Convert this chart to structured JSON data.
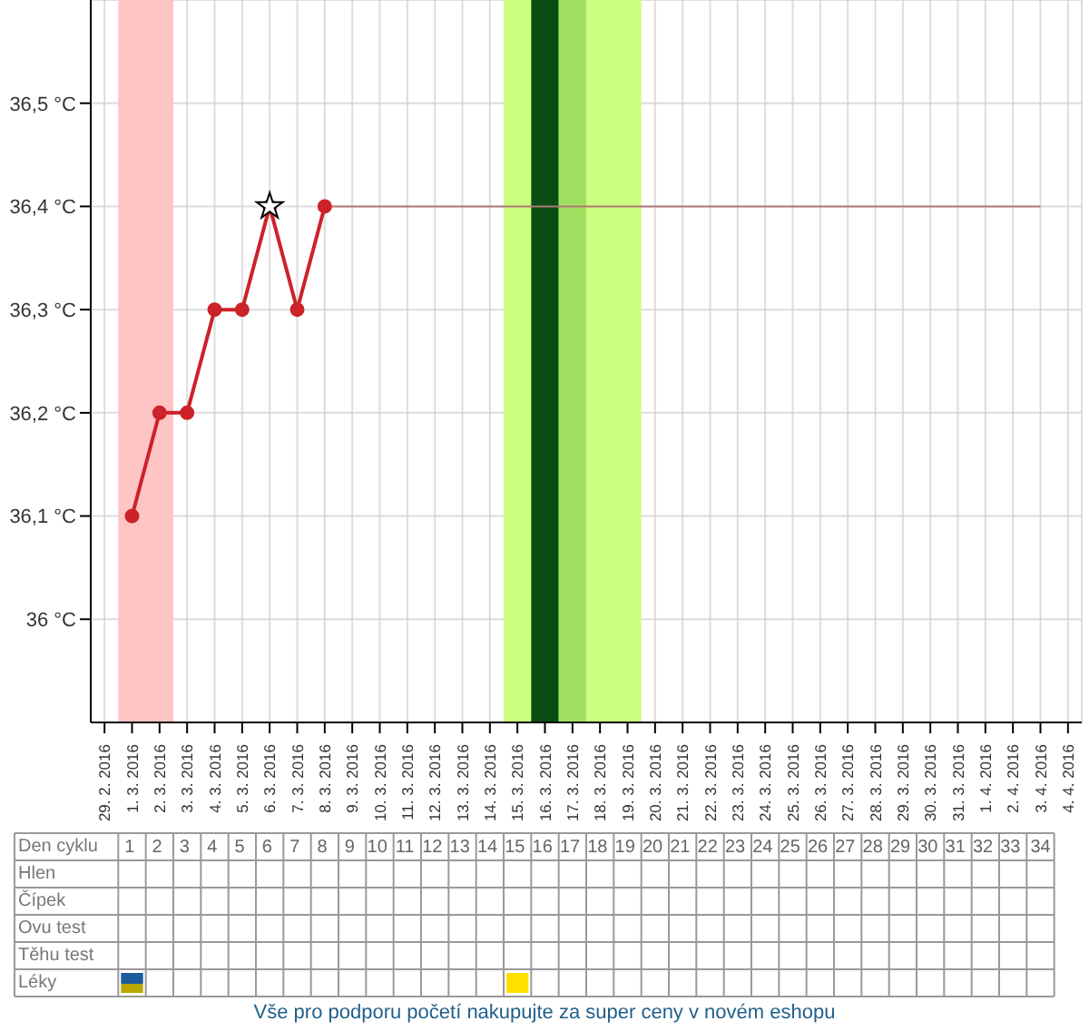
{
  "chart_data": {
    "type": "line",
    "categories": [
      "29. 2. 2016",
      "1. 3. 2016",
      "2. 3. 2016",
      "3. 3. 2016",
      "4. 3. 2016",
      "5. 3. 2016",
      "6. 3. 2016",
      "7. 3. 2016",
      "8. 3. 2016",
      "9. 3. 2016",
      "10. 3. 2016",
      "11. 3. 2016",
      "12. 3. 2016",
      "13. 3. 2016",
      "14. 3. 2016",
      "15. 3. 2016",
      "16. 3. 2016",
      "17. 3. 2016",
      "18. 3. 2016",
      "19. 3. 2016",
      "20. 3. 2016",
      "21. 3. 2016",
      "22. 3. 2016",
      "23. 3. 2016",
      "24. 3. 2016",
      "25. 3. 2016",
      "26. 3. 2016",
      "27. 3. 2016",
      "28. 3. 2016",
      "29. 3. 2016",
      "30. 3. 2016",
      "31. 3. 2016",
      "1. 4. 2016",
      "2. 4. 2016",
      "3. 4. 2016",
      "4. 4. 2016"
    ],
    "series": [
      {
        "color": "#cc2229",
        "marker": "circle",
        "values": [
          null,
          36.1,
          36.2,
          36.2,
          36.3,
          36.3,
          36.4,
          36.3,
          36.4,
          null,
          null,
          null,
          null,
          null,
          null,
          null,
          null,
          null,
          null,
          null,
          null,
          null,
          null,
          null,
          null,
          null,
          null,
          null,
          null,
          null,
          null,
          null,
          null,
          null,
          null,
          null
        ]
      },
      {
        "color": "#b07878",
        "marker": "none",
        "values": [
          null,
          null,
          null,
          null,
          null,
          null,
          null,
          null,
          36.4,
          36.4,
          36.4,
          36.4,
          36.4,
          36.4,
          36.4,
          36.4,
          36.4,
          36.4,
          36.4,
          36.4,
          36.4,
          36.4,
          36.4,
          36.4,
          36.4,
          36.4,
          36.4,
          36.4,
          36.4,
          36.4,
          36.4,
          36.4,
          36.4,
          36.4,
          36.4,
          null
        ]
      },
      {
        "type": "scatter",
        "color": "#ffffff",
        "marker": "star",
        "x": [
          "6. 3. 2016"
        ],
        "values": [
          36.4
        ]
      }
    ],
    "ylim": [
      35.9,
      36.6
    ],
    "yticks": [
      {
        "value": 36,
        "label": "36 °C"
      },
      {
        "value": 36.1,
        "label": "36,1 °C"
      },
      {
        "value": 36.2,
        "label": "36,2 °C"
      },
      {
        "value": 36.3,
        "label": "36,3 °C"
      },
      {
        "value": 36.4,
        "label": "36,4 °C"
      },
      {
        "value": 36.5,
        "label": "36,5 °C"
      }
    ],
    "grid": true,
    "bands": [
      {
        "axis": "x",
        "from": "1. 3. 2016",
        "to": "2. 3. 2016",
        "color": "#ffc4c4"
      },
      {
        "axis": "x",
        "from": "15. 3. 2016",
        "to": "19. 3. 2016",
        "color": "#ccff80"
      },
      {
        "axis": "x",
        "from": "16. 3. 2016",
        "to": "16. 3. 2016",
        "color": "#0a4d12"
      },
      {
        "axis": "x",
        "from": "17. 3. 2016",
        "to": "17. 3. 2016",
        "color": "#a0e060"
      }
    ],
    "annotations": [
      "Den cyklu",
      "Hlen",
      "Čípek",
      "Ovu test",
      "Těhu test",
      "Léky",
      "1 2 3 4 5 6 7 8 9 10 11 12 13 14 15 16 17 18 19 20 21 22 23 24 25 26 27 28 29 30 31 32 33 34",
      "Vše pro podporu početí nakupujte za super ceny v novém eshopu"
    ]
  }
}
